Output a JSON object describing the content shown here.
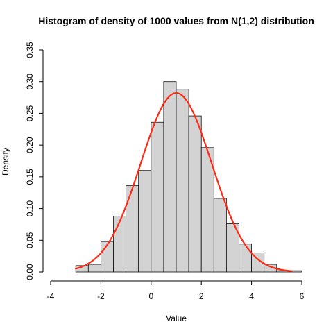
{
  "chart_data": {
    "type": "bar",
    "title": "Histogram of density of 1000 values from N(1,2) distribution",
    "xlabel": "Value",
    "ylabel": "Density",
    "xlim": [
      -4,
      6
    ],
    "ylim": [
      0,
      0.35
    ],
    "x_ticks": [
      -4,
      -2,
      0,
      2,
      4,
      6
    ],
    "y_ticks": [
      0.0,
      0.05,
      0.1,
      0.15,
      0.2,
      0.25,
      0.3,
      0.35
    ],
    "x_tick_labels": [
      "-4",
      "-2",
      "0",
      "2",
      "4",
      "6"
    ],
    "y_tick_labels": [
      "0.00",
      "0.05",
      "0.10",
      "0.15",
      "0.20",
      "0.25",
      "0.30",
      "0.35"
    ],
    "bins": [
      {
        "start": -3.0,
        "end": -2.5,
        "density": 0.01
      },
      {
        "start": -2.5,
        "end": -2.0,
        "density": 0.012
      },
      {
        "start": -2.0,
        "end": -1.5,
        "density": 0.048
      },
      {
        "start": -1.5,
        "end": -1.0,
        "density": 0.088
      },
      {
        "start": -1.0,
        "end": -0.5,
        "density": 0.136
      },
      {
        "start": -0.5,
        "end": 0.0,
        "density": 0.16
      },
      {
        "start": 0.0,
        "end": 0.5,
        "density": 0.236
      },
      {
        "start": 0.5,
        "end": 1.0,
        "density": 0.3
      },
      {
        "start": 1.0,
        "end": 1.5,
        "density": 0.288
      },
      {
        "start": 1.5,
        "end": 2.0,
        "density": 0.246
      },
      {
        "start": 2.0,
        "end": 2.5,
        "density": 0.196
      },
      {
        "start": 2.5,
        "end": 3.0,
        "density": 0.116
      },
      {
        "start": 3.0,
        "end": 3.5,
        "density": 0.076
      },
      {
        "start": 3.5,
        "end": 4.0,
        "density": 0.044
      },
      {
        "start": 4.0,
        "end": 4.5,
        "density": 0.03
      },
      {
        "start": 4.5,
        "end": 5.0,
        "density": 0.012
      },
      {
        "start": 5.0,
        "end": 5.5,
        "density": 0.002
      },
      {
        "start": 5.5,
        "end": 6.0,
        "density": 0.002
      }
    ],
    "curve": {
      "type": "normal_density",
      "mean": 1,
      "sd": 1.41421356,
      "x_range": [
        -3,
        5.6
      ]
    },
    "colors": {
      "bar_fill": "#d3d3d3",
      "bar_border": "#000000",
      "curve": "#ff2a14"
    },
    "grid": false,
    "legend": "none"
  }
}
